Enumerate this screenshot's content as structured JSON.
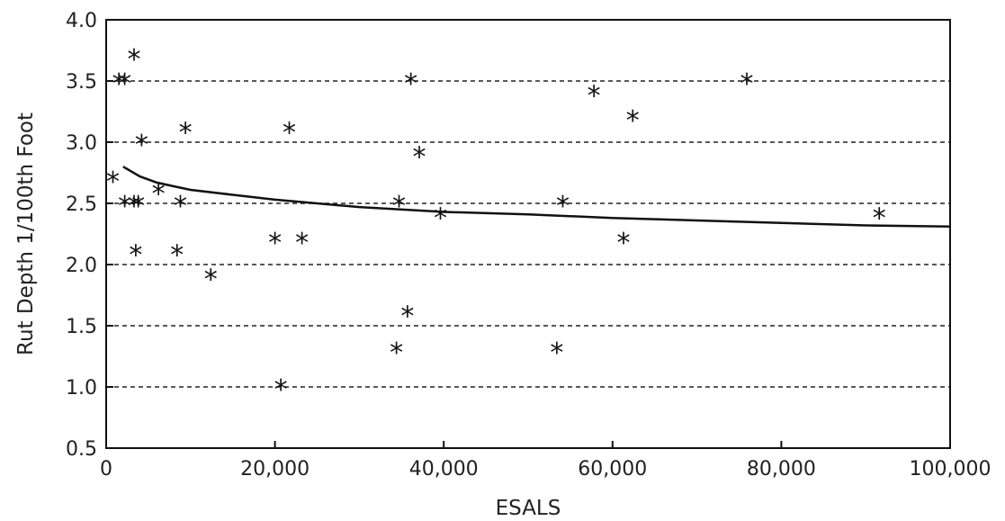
{
  "chart_data": {
    "type": "scatter",
    "xlabel": "ESALS",
    "ylabel": "Rut Depth 1/100th Foot",
    "xlim": [
      0,
      100000
    ],
    "ylim": [
      0.5,
      4.0
    ],
    "x_ticks": [
      "0",
      "20,000",
      "40,000",
      "60,000",
      "80,000",
      "100,000"
    ],
    "y_ticks": [
      "0.5",
      "1.0",
      "1.5",
      "2.0",
      "2.5",
      "3.0",
      "3.5",
      "4.0"
    ],
    "gridlines_y": [
      1.0,
      1.5,
      2.0,
      2.5,
      3.0,
      3.5
    ],
    "grid": "horizontal dashed",
    "marker": "*",
    "points": [
      {
        "x": 800,
        "y": 2.7
      },
      {
        "x": 1500,
        "y": 3.5
      },
      {
        "x": 2200,
        "y": 3.5
      },
      {
        "x": 3300,
        "y": 3.7
      },
      {
        "x": 2200,
        "y": 2.5
      },
      {
        "x": 3300,
        "y": 2.5
      },
      {
        "x": 3800,
        "y": 2.5
      },
      {
        "x": 3500,
        "y": 2.1
      },
      {
        "x": 4200,
        "y": 3.0
      },
      {
        "x": 6200,
        "y": 2.6
      },
      {
        "x": 8400,
        "y": 2.1
      },
      {
        "x": 8800,
        "y": 2.5
      },
      {
        "x": 9400,
        "y": 3.1
      },
      {
        "x": 12400,
        "y": 1.9
      },
      {
        "x": 20000,
        "y": 2.2
      },
      {
        "x": 20700,
        "y": 1.0
      },
      {
        "x": 21700,
        "y": 3.1
      },
      {
        "x": 23200,
        "y": 2.2
      },
      {
        "x": 34400,
        "y": 1.3
      },
      {
        "x": 34700,
        "y": 2.5
      },
      {
        "x": 35700,
        "y": 1.6
      },
      {
        "x": 36100,
        "y": 3.5
      },
      {
        "x": 37100,
        "y": 2.9
      },
      {
        "x": 39600,
        "y": 2.4
      },
      {
        "x": 53400,
        "y": 1.3
      },
      {
        "x": 54100,
        "y": 2.5
      },
      {
        "x": 57800,
        "y": 3.4
      },
      {
        "x": 61300,
        "y": 2.2
      },
      {
        "x": 62400,
        "y": 3.2
      },
      {
        "x": 75900,
        "y": 3.5
      },
      {
        "x": 91600,
        "y": 2.4
      }
    ],
    "curve": [
      {
        "x": 2000,
        "y": 2.8
      },
      {
        "x": 4000,
        "y": 2.72
      },
      {
        "x": 6000,
        "y": 2.67
      },
      {
        "x": 8000,
        "y": 2.64
      },
      {
        "x": 10000,
        "y": 2.61
      },
      {
        "x": 15000,
        "y": 2.57
      },
      {
        "x": 20000,
        "y": 2.53
      },
      {
        "x": 30000,
        "y": 2.47
      },
      {
        "x": 40000,
        "y": 2.43
      },
      {
        "x": 50000,
        "y": 2.41
      },
      {
        "x": 60000,
        "y": 2.38
      },
      {
        "x": 70000,
        "y": 2.36
      },
      {
        "x": 80000,
        "y": 2.34
      },
      {
        "x": 90000,
        "y": 2.32
      },
      {
        "x": 100000,
        "y": 2.31
      }
    ]
  }
}
